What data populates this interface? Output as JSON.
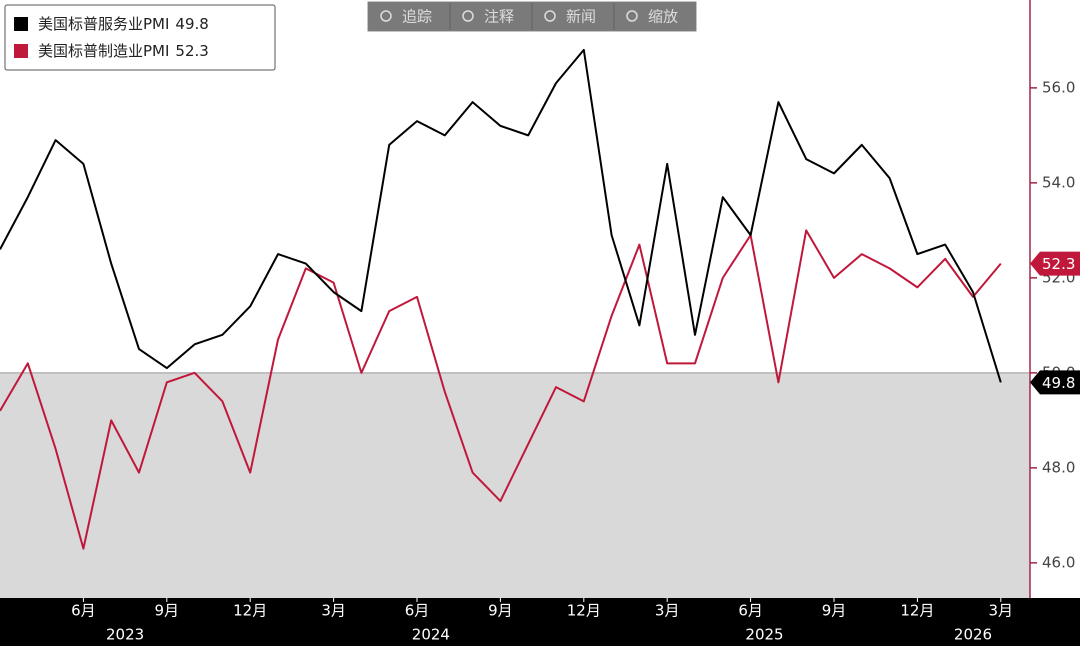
{
  "chart_data": {
    "type": "line",
    "toolbar": [
      "追踪",
      "注释",
      "新闻",
      "缩放"
    ],
    "categories": [
      null,
      null,
      null,
      "6月",
      null,
      null,
      "9月",
      null,
      null,
      "12月",
      null,
      null,
      "3月",
      null,
      null,
      "6月",
      null,
      null,
      "9月",
      null,
      null,
      "12月",
      null,
      null,
      "3月",
      null,
      null,
      "6月",
      null,
      null,
      "9月",
      null,
      null,
      "12月",
      null,
      null,
      "3月"
    ],
    "x_groups": [
      {
        "label": "2023",
        "count": 10
      },
      {
        "label": "2024",
        "count": 12
      },
      {
        "label": "2025",
        "count": 12
      },
      {
        "label": "2026",
        "count": 3
      }
    ],
    "series": [
      {
        "name": "美国标普服务业PMI",
        "color": "#000000",
        "last_value_label": "49.8",
        "values": [
          52.6,
          53.7,
          54.9,
          54.4,
          52.3,
          50.5,
          50.1,
          50.6,
          50.8,
          51.4,
          52.5,
          52.3,
          51.7,
          51.3,
          54.8,
          55.3,
          55.0,
          55.7,
          55.2,
          55.0,
          56.1,
          56.8,
          52.9,
          51.0,
          54.4,
          50.8,
          53.7,
          52.9,
          55.7,
          54.5,
          54.2,
          54.8,
          54.1,
          52.5,
          52.7,
          51.7,
          49.8
        ]
      },
      {
        "name": "美国标普制造业PMI",
        "color": "#c0183a",
        "last_value_label": "52.3",
        "values": [
          49.2,
          50.2,
          48.4,
          46.3,
          49.0,
          47.9,
          49.8,
          50.0,
          49.4,
          47.9,
          50.7,
          52.2,
          51.9,
          50.0,
          51.3,
          51.6,
          49.6,
          47.9,
          47.3,
          48.5,
          49.7,
          49.4,
          51.2,
          52.7,
          50.2,
          50.2,
          52.0,
          52.9,
          49.8,
          53.0,
          52.0,
          52.5,
          52.2,
          51.8,
          52.4,
          51.6,
          52.3
        ]
      }
    ],
    "ylim": [
      45.26,
      57.85
    ],
    "yticks": [
      {
        "value": 46,
        "label": "46.0"
      },
      {
        "value": 48,
        "label": "48.0"
      },
      {
        "value": 50,
        "label": "50.0"
      },
      {
        "value": 52,
        "label": "52.0"
      },
      {
        "value": 54,
        "label": "54.0"
      },
      {
        "value": 56,
        "label": "56.0"
      }
    ],
    "shade_below": 50,
    "shade_color": "#d9d9d9",
    "axis_side": "right",
    "legend": "upper left"
  }
}
